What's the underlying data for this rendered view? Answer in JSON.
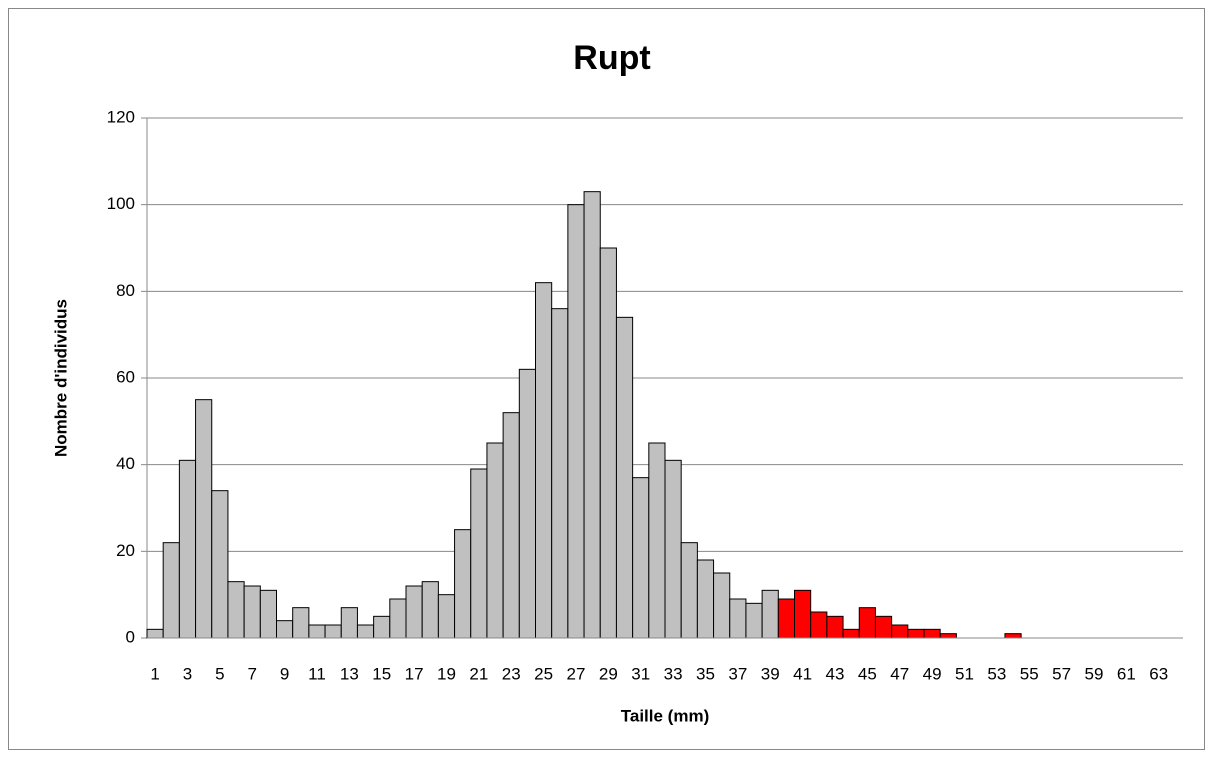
{
  "chart_data": {
    "type": "bar",
    "title": "Rupt",
    "x_label": "Taille (mm)",
    "y_label": "Nombre d'individus",
    "categories": [
      "1",
      null,
      "3",
      null,
      "5",
      null,
      "7",
      null,
      "9",
      null,
      "11",
      null,
      "13",
      null,
      "15",
      null,
      "17",
      null,
      "19",
      null,
      "21",
      null,
      "23",
      null,
      "25",
      null,
      "27",
      null,
      "29",
      null,
      "31",
      null,
      "33",
      null,
      "35",
      null,
      "37",
      null,
      "39",
      null,
      "41",
      null,
      "43",
      null,
      "45",
      null,
      "47",
      null,
      "49",
      null,
      "51",
      null,
      "53",
      null,
      "55",
      null,
      "57",
      null,
      "59",
      null,
      "61",
      null,
      "63",
      null
    ],
    "values": [
      2,
      22,
      41,
      55,
      34,
      13,
      12,
      11,
      4,
      7,
      3,
      3,
      7,
      3,
      5,
      9,
      12,
      13,
      10,
      25,
      39,
      45,
      52,
      62,
      82,
      76,
      100,
      103,
      90,
      74,
      37,
      45,
      41,
      22,
      18,
      15,
      9,
      8,
      11,
      9,
      11,
      6,
      5,
      2,
      7,
      5,
      3,
      2,
      2,
      1,
      0,
      0,
      0,
      1,
      0,
      0,
      0,
      0,
      0,
      0,
      0,
      0,
      0,
      0
    ],
    "colors": [
      "#c0c0c0",
      "#c0c0c0",
      "#c0c0c0",
      "#c0c0c0",
      "#c0c0c0",
      "#c0c0c0",
      "#c0c0c0",
      "#c0c0c0",
      "#c0c0c0",
      "#c0c0c0",
      "#c0c0c0",
      "#c0c0c0",
      "#c0c0c0",
      "#c0c0c0",
      "#c0c0c0",
      "#c0c0c0",
      "#c0c0c0",
      "#c0c0c0",
      "#c0c0c0",
      "#c0c0c0",
      "#c0c0c0",
      "#c0c0c0",
      "#c0c0c0",
      "#c0c0c0",
      "#c0c0c0",
      "#c0c0c0",
      "#c0c0c0",
      "#c0c0c0",
      "#c0c0c0",
      "#c0c0c0",
      "#c0c0c0",
      "#c0c0c0",
      "#c0c0c0",
      "#c0c0c0",
      "#c0c0c0",
      "#c0c0c0",
      "#c0c0c0",
      "#c0c0c0",
      "#c0c0c0",
      "#ff0000",
      "#ff0000",
      "#ff0000",
      "#ff0000",
      "#ff0000",
      "#ff0000",
      "#ff0000",
      "#ff0000",
      "#ff0000",
      "#ff0000",
      "#ff0000",
      "#ff0000",
      "#ff0000",
      "#ff0000",
      "#ff0000",
      "#c0c0c0",
      "#c0c0c0",
      "#c0c0c0",
      "#c0c0c0",
      "#c0c0c0",
      "#c0c0c0",
      "#c0c0c0",
      "#c0c0c0",
      "#c0c0c0",
      "#c0c0c0"
    ],
    "ylim": [
      0,
      120
    ],
    "yticks": [
      0,
      20,
      40,
      60,
      80,
      100,
      120
    ],
    "grid": true
  }
}
